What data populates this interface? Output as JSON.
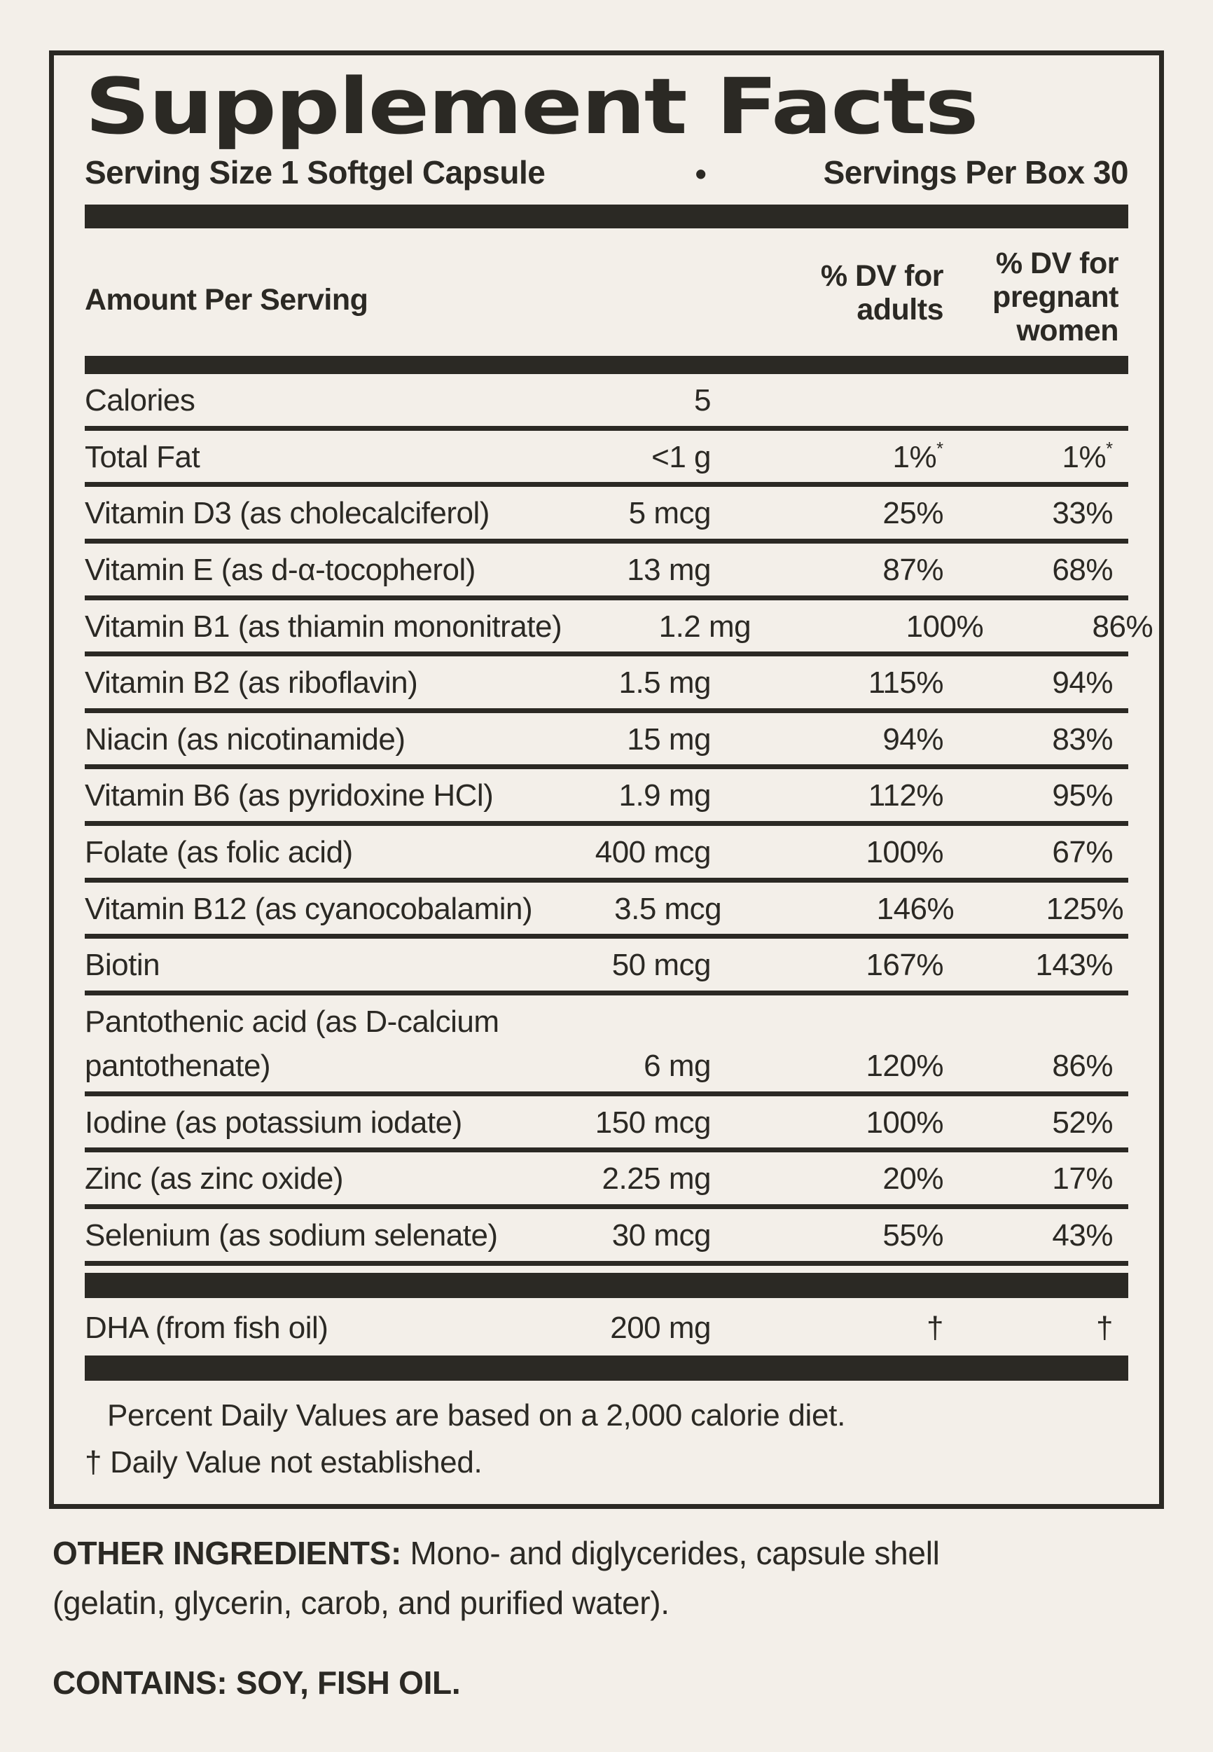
{
  "colors": {
    "background": "#f3efe9",
    "ink": "#2b2924"
  },
  "header": {
    "title": "Supplement Facts",
    "serving_size": "Serving Size 1 Softgel Capsule",
    "bullet": "•",
    "servings_per_box": "Servings Per Box 30"
  },
  "table": {
    "amount_header": "Amount Per Serving",
    "adults_header": "% DV for adults",
    "pregnant_header": "% DV for pregnant women",
    "rows": [
      {
        "name": "Calories",
        "amount": "5",
        "adults": "",
        "pregnant": ""
      },
      {
        "name": "Total Fat",
        "amount": "<1 g",
        "adults": "1%",
        "adults_sup": "*",
        "pregnant": "1%",
        "pregnant_sup": "*"
      },
      {
        "name": "Vitamin D3 (as cholecalciferol)",
        "amount": "5 mcg",
        "adults": "25%",
        "pregnant": "33%"
      },
      {
        "name": "Vitamin E (as d-α-tocopherol)",
        "amount": "13 mg",
        "adults": "87%",
        "pregnant": "68%"
      },
      {
        "name": "Vitamin B1 (as thiamin mononitrate)",
        "amount": "1.2 mg",
        "adults": "100%",
        "pregnant": "86%"
      },
      {
        "name": "Vitamin B2 (as riboflavin)",
        "amount": "1.5 mg",
        "adults": "115%",
        "pregnant": "94%"
      },
      {
        "name": "Niacin (as nicotinamide)",
        "amount": "15 mg",
        "adults": "94%",
        "pregnant": "83%"
      },
      {
        "name": "Vitamin B6 (as pyridoxine HCl)",
        "amount": "1.9 mg",
        "adults": "112%",
        "pregnant": "95%"
      },
      {
        "name": "Folate (as folic acid)",
        "amount": "400 mcg",
        "adults": "100%",
        "pregnant": "67%"
      },
      {
        "name": "Vitamin B12 (as cyanocobalamin)",
        "amount": "3.5 mcg",
        "adults": "146%",
        "pregnant": "125%"
      },
      {
        "name": "Biotin",
        "amount": "50 mcg",
        "adults": "167%",
        "pregnant": "143%"
      },
      {
        "name": "Pantothenic acid (as D-calcium",
        "name_line2": "pantothenate)",
        "amount": "6 mg",
        "adults": "120%",
        "pregnant": "86%"
      },
      {
        "name": "Iodine (as potassium iodate)",
        "amount": "150 mcg",
        "adults": "100%",
        "pregnant": "52%"
      },
      {
        "name": "Zinc (as zinc oxide)",
        "amount": "2.25 mg",
        "adults": "20%",
        "pregnant": "17%"
      },
      {
        "name": "Selenium (as sodium selenate)",
        "amount": "30 mcg",
        "adults": "55%",
        "pregnant": "43%"
      }
    ],
    "dha_row": {
      "name": "DHA (from fish oil)",
      "amount": "200 mg",
      "adults": "†",
      "pregnant": "†"
    }
  },
  "footnotes": {
    "percent_dv": "Percent Daily Values are based on a 2,000 calorie diet.",
    "dagger_symbol": "†",
    "dagger_text": "Daily Value not established."
  },
  "bottom": {
    "other_ingredients_label": "OTHER INGREDIENTS:",
    "other_ingredients_text": " Mono- and diglycerides, capsule shell (gelatin, glycerin, carob, and purified water).",
    "contains_label": "CONTAINS:",
    "contains_text": " SOY, FISH OIL."
  }
}
